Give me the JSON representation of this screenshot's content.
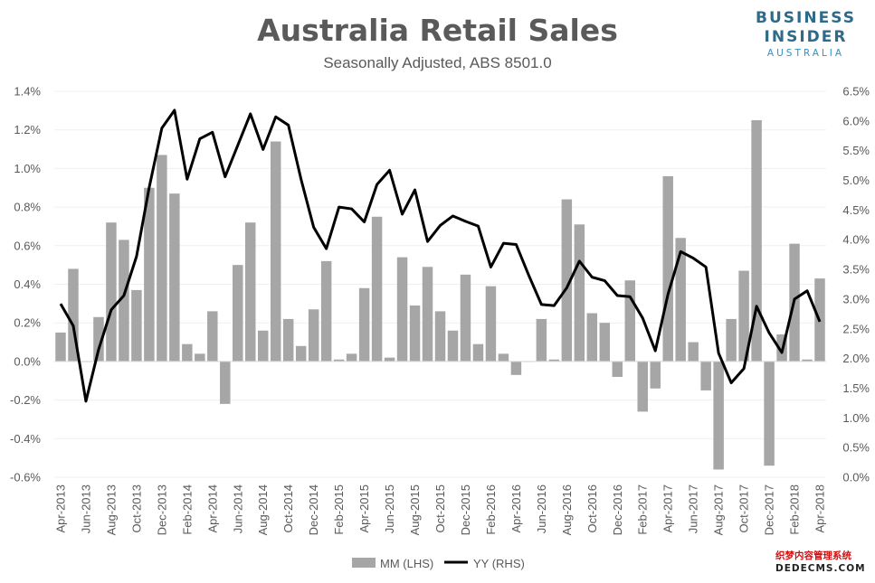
{
  "branding": {
    "line1": "BUSINESS",
    "line2": "INSIDER",
    "line3": "AUSTRALIA"
  },
  "watermark": {
    "line1": "织梦内容管理系统",
    "line2": "DEDECMS.COM"
  },
  "colors": {
    "bar": "#a6a6a6",
    "line": "#000000",
    "title": "#5a5a5a",
    "brand": "#2e6a8a"
  },
  "chart_data": {
    "type": "bar",
    "title": "Australia Retail Sales",
    "subtitle": "Seasonally Adjusted, ABS 8501.0",
    "left_axis": {
      "ticks": [
        "-0.6%",
        "-0.4%",
        "-0.2%",
        "0.0%",
        "0.2%",
        "0.4%",
        "0.6%",
        "0.8%",
        "1.0%",
        "1.2%",
        "1.4%"
      ],
      "ylim": [
        -0.6,
        1.4
      ]
    },
    "right_axis": {
      "ticks": [
        "0.0%",
        "0.5%",
        "1.0%",
        "1.5%",
        "2.0%",
        "2.5%",
        "3.0%",
        "3.5%",
        "4.0%",
        "4.5%",
        "5.0%",
        "5.5%",
        "6.0%",
        "6.5%"
      ],
      "ylim": [
        0.0,
        6.5
      ]
    },
    "x_tick_labels": [
      "Apr-2013",
      "Jun-2013",
      "Aug-2013",
      "Oct-2013",
      "Dec-2013",
      "Feb-2014",
      "Apr-2014",
      "Jun-2014",
      "Aug-2014",
      "Oct-2014",
      "Dec-2014",
      "Feb-2015",
      "Apr-2015",
      "Jun-2015",
      "Aug-2015",
      "Oct-2015",
      "Dec-2015",
      "Feb-2016",
      "Apr-2016",
      "Jun-2016",
      "Aug-2016",
      "Oct-2016",
      "Dec-2016",
      "Feb-2017",
      "Apr-2017",
      "Jun-2017",
      "Aug-2017",
      "Oct-2017",
      "Dec-2017",
      "Feb-2018",
      "Apr-2018"
    ],
    "months": [
      "Apr-2013",
      "May-2013",
      "Jun-2013",
      "Jul-2013",
      "Aug-2013",
      "Sep-2013",
      "Oct-2013",
      "Nov-2013",
      "Dec-2013",
      "Jan-2014",
      "Feb-2014",
      "Mar-2014",
      "Apr-2014",
      "May-2014",
      "Jun-2014",
      "Jul-2014",
      "Aug-2014",
      "Sep-2014",
      "Oct-2014",
      "Nov-2014",
      "Dec-2014",
      "Jan-2015",
      "Feb-2015",
      "Mar-2015",
      "Apr-2015",
      "May-2015",
      "Jun-2015",
      "Jul-2015",
      "Aug-2015",
      "Sep-2015",
      "Oct-2015",
      "Nov-2015",
      "Dec-2015",
      "Jan-2016",
      "Feb-2016",
      "Mar-2016",
      "Apr-2016",
      "May-2016",
      "Jun-2016",
      "Jul-2016",
      "Aug-2016",
      "Sep-2016",
      "Oct-2016",
      "Nov-2016",
      "Dec-2016",
      "Jan-2017",
      "Feb-2017",
      "Mar-2017",
      "Apr-2017",
      "May-2017",
      "Jun-2017",
      "Jul-2017",
      "Aug-2017",
      "Sep-2017",
      "Oct-2017",
      "Nov-2017",
      "Dec-2017",
      "Jan-2018",
      "Feb-2018",
      "Mar-2018",
      "Apr-2018"
    ],
    "series": [
      {
        "name": "MM (LHS)",
        "type": "bar",
        "axis": "left",
        "values": [
          0.15,
          0.48,
          0.0,
          0.23,
          0.72,
          0.63,
          0.37,
          0.9,
          1.07,
          0.87,
          0.09,
          0.04,
          0.26,
          -0.22,
          0.5,
          0.72,
          0.16,
          1.14,
          0.22,
          0.08,
          0.27,
          0.52,
          0.01,
          0.04,
          0.38,
          0.75,
          0.02,
          0.54,
          0.29,
          0.49,
          0.26,
          0.16,
          0.45,
          0.09,
          0.39,
          0.04,
          -0.07,
          0.0,
          0.22,
          0.01,
          0.84,
          0.71,
          0.25,
          0.2,
          -0.08,
          0.42,
          -0.26,
          -0.14,
          0.96,
          0.64,
          0.1,
          -0.15,
          -0.56,
          0.22,
          0.47,
          1.25,
          -0.54,
          0.14,
          0.61,
          0.01,
          0.43
        ]
      },
      {
        "name": "YY (RHS)",
        "type": "line",
        "axis": "right",
        "values": [
          2.92,
          2.55,
          1.28,
          2.15,
          2.82,
          3.06,
          3.72,
          4.88,
          5.88,
          6.18,
          5.02,
          5.7,
          5.81,
          5.06,
          5.59,
          6.12,
          5.52,
          6.07,
          5.93,
          5.02,
          4.21,
          3.85,
          4.55,
          4.52,
          4.3,
          4.93,
          5.17,
          4.43,
          4.84,
          3.97,
          4.24,
          4.4,
          4.31,
          4.23,
          3.54,
          3.94,
          3.92,
          3.4,
          2.91,
          2.89,
          3.19,
          3.64,
          3.37,
          3.31,
          3.06,
          3.04,
          2.68,
          2.13,
          3.08,
          3.8,
          3.69,
          3.54,
          2.09,
          1.59,
          1.83,
          2.88,
          2.43,
          2.1,
          3.0,
          3.14,
          2.62
        ]
      }
    ]
  }
}
